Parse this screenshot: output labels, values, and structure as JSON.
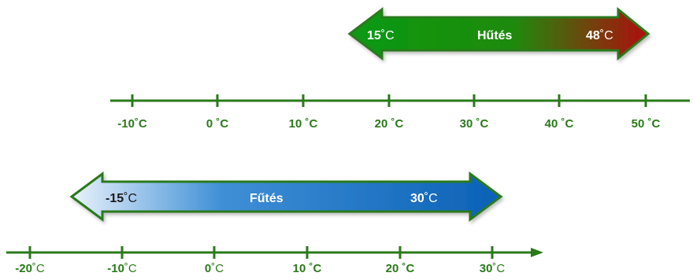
{
  "cooling": {
    "start_value": "15",
    "start_unit": "˚C",
    "label": "Hűtés",
    "end_value": "48",
    "end_unit": "˚C",
    "colors": {
      "left": "#0a9a12",
      "right": "#b00d0d",
      "outline": "#2a7a1a"
    }
  },
  "heating": {
    "start_value": "-15",
    "start_unit": "˚C",
    "label": "Fűtés",
    "end_value": "30",
    "end_unit": "˚C",
    "colors": {
      "left": "#e6f0fa",
      "right": "#0b61b6",
      "outline": "#2a7a1a"
    }
  },
  "top_scale": {
    "ticks": [
      {
        "value": "-10",
        "unit": "˚C"
      },
      {
        "value": "0",
        "unit": " ˚C"
      },
      {
        "value": "10",
        "unit": " ˚C"
      },
      {
        "value": "20",
        "unit": " ˚C"
      },
      {
        "value": "30",
        "unit": " ˚C"
      },
      {
        "value": "40",
        "unit": " ˚C"
      },
      {
        "value": "50",
        "unit": " ˚C"
      }
    ]
  },
  "bottom_scale": {
    "ticks": [
      {
        "value": "-20",
        "unit": "˚C"
      },
      {
        "value": "-10",
        "unit": "˚C"
      },
      {
        "value": "0",
        "unit": "˚C"
      },
      {
        "value": "10",
        "unit": " ˚C"
      },
      {
        "value": "20",
        "unit": " ˚C"
      },
      {
        "value": "30",
        "unit": "˚C"
      }
    ]
  },
  "axis_color": "#2a7a1a"
}
